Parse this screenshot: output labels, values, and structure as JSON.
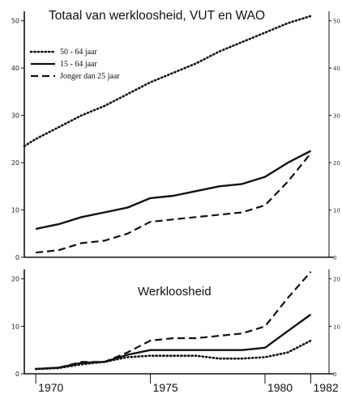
{
  "chart_data": [
    {
      "type": "line",
      "title": "Totaal van werkloosheid, VUT en WAO",
      "xlabel": "",
      "ylabel": "",
      "xlim": [
        1969.5,
        1982.3
      ],
      "ylim": [
        0,
        52
      ],
      "yticks": [
        0,
        10,
        20,
        30,
        40,
        50
      ],
      "ytick_labels": [
        "0",
        "10",
        "20",
        "30",
        "40",
        "50"
      ],
      "right_ytick_labels": [
        "0",
        "10",
        "20",
        "30",
        "40",
        "50"
      ],
      "legend_position": "top-left",
      "series": [
        {
          "name": "50 - 64 jaar",
          "style": "dotted",
          "x": [
            1969.5,
            1970,
            1971,
            1972,
            1973,
            1974,
            1975,
            1976,
            1977,
            1978,
            1979,
            1980,
            1981,
            1982
          ],
          "y": [
            23.5,
            25,
            27.5,
            30,
            32,
            34.5,
            37,
            39,
            41,
            43.5,
            45.5,
            47.5,
            49.5,
            51
          ]
        },
        {
          "name": "15 - 64 jaar",
          "style": "solid",
          "x": [
            1970,
            1971,
            1972,
            1973,
            1974,
            1975,
            1976,
            1977,
            1978,
            1979,
            1980,
            1981,
            1982
          ],
          "y": [
            6,
            7,
            8.5,
            9.5,
            10.5,
            12.5,
            13,
            14,
            15,
            15.5,
            17,
            20,
            22.5
          ]
        },
        {
          "name": "Jonger dan 25 jaar",
          "style": "dashed",
          "x": [
            1970,
            1971,
            1972,
            1973,
            1974,
            1975,
            1976,
            1977,
            1978,
            1979,
            1980,
            1981,
            1982
          ],
          "y": [
            1,
            1.5,
            3,
            3.5,
            5,
            7.5,
            8,
            8.5,
            9,
            9.5,
            11,
            16,
            22
          ]
        }
      ]
    },
    {
      "type": "line",
      "title": "Werkloosheid",
      "xlabel": "",
      "ylabel": "",
      "xlim": [
        1969.5,
        1982.3
      ],
      "ylim": [
        0,
        22
      ],
      "yticks": [
        0,
        10,
        20
      ],
      "ytick_labels": [
        "0",
        "10",
        "20"
      ],
      "right_ytick_labels": [
        "0",
        "10",
        "20"
      ],
      "xticks": [
        1970,
        1975,
        1980,
        1982
      ],
      "xtick_labels": [
        "1970",
        "1975",
        "1980",
        "1982"
      ],
      "series": [
        {
          "name": "50 - 64 jaar",
          "style": "dotted",
          "x": [
            1970,
            1971,
            1972,
            1973,
            1974,
            1975,
            1976,
            1977,
            1978,
            1979,
            1980,
            1981,
            1982
          ],
          "y": [
            1,
            1.2,
            2,
            2.5,
            3.5,
            3.8,
            3.8,
            3.8,
            3.2,
            3.2,
            3.5,
            4.5,
            7
          ]
        },
        {
          "name": "15 - 64 jaar",
          "style": "solid",
          "x": [
            1970,
            1971,
            1972,
            1973,
            1974,
            1975,
            1976,
            1977,
            1978,
            1979,
            1980,
            1981,
            1982
          ],
          "y": [
            1,
            1.3,
            2.3,
            2.5,
            4,
            5,
            5,
            5,
            5,
            5,
            5.5,
            9,
            12.5
          ]
        },
        {
          "name": "Jonger dan 25 jaar",
          "style": "dashed",
          "x": [
            1970,
            1971,
            1972,
            1973,
            1974,
            1975,
            1976,
            1977,
            1978,
            1979,
            1980,
            1981,
            1982
          ],
          "y": [
            1,
            1.3,
            2.5,
            2.5,
            4.5,
            7,
            7.5,
            7.5,
            8,
            8.5,
            10,
            16,
            21.5
          ]
        }
      ]
    }
  ]
}
